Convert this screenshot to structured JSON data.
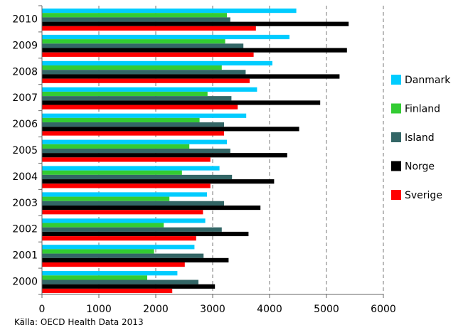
{
  "chart_data": {
    "type": "bar",
    "orientation": "horizontal",
    "categories": [
      "2000",
      "2001",
      "2002",
      "2003",
      "2004",
      "2005",
      "2006",
      "2007",
      "2008",
      "2009",
      "2010"
    ],
    "series": [
      {
        "name": "Danmark",
        "color": "#00ccff",
        "values": [
          2380,
          2680,
          2870,
          2900,
          3120,
          3250,
          3590,
          3780,
          4050,
          4350,
          4470
        ]
      },
      {
        "name": "Finland",
        "color": "#33cc33",
        "values": [
          1850,
          1970,
          2140,
          2240,
          2460,
          2590,
          2770,
          2910,
          3160,
          3220,
          3250
        ]
      },
      {
        "name": "Island",
        "color": "#336666",
        "values": [
          2750,
          2840,
          3160,
          3200,
          3340,
          3310,
          3200,
          3330,
          3580,
          3540,
          3310
        ]
      },
      {
        "name": "Norge",
        "color": "#000000",
        "values": [
          3040,
          3280,
          3630,
          3840,
          4080,
          4310,
          4520,
          4890,
          5230,
          5360,
          5390
        ]
      },
      {
        "name": "Sverige",
        "color": "#ff0000",
        "values": [
          2290,
          2510,
          2710,
          2830,
          2960,
          2960,
          3200,
          3440,
          3650,
          3720,
          3760
        ]
      }
    ],
    "xlim": [
      0,
      6000
    ],
    "xticks": [
      0,
      1000,
      2000,
      3000,
      4000,
      5000,
      6000
    ],
    "grid": "vertical-dashed",
    "legend_position": "right",
    "title": "",
    "xlabel": "",
    "ylabel": ""
  },
  "source_note": "Källa: OECD Health Data 2013"
}
